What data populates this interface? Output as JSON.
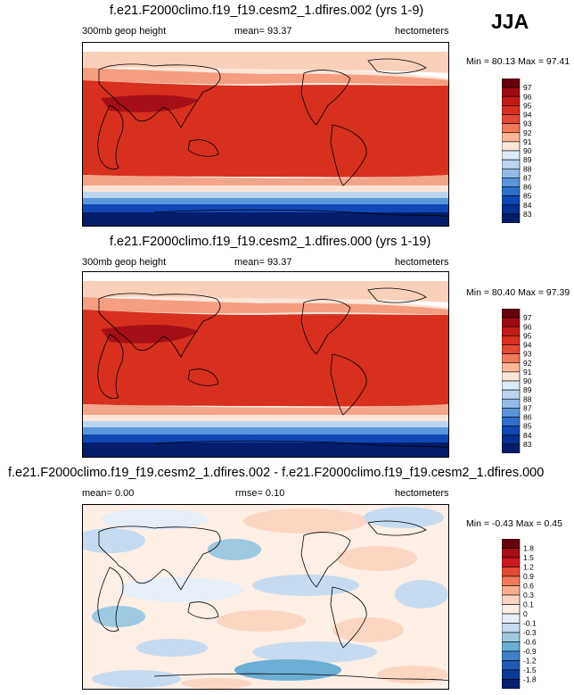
{
  "season": "JJA",
  "panels": [
    {
      "title": "f.e21.F2000climo.f19_f19.cesm2_1.dfires.002 (yrs 1-9)",
      "left_label": "300mb geop height",
      "center_label": "mean=  93.37",
      "right_label": "hectometers",
      "minmax": "Min = 80.13 Max =  97.41"
    },
    {
      "title": "f.e21.F2000climo.f19_f19.cesm2_1.dfires.000 (yrs 1-19)",
      "left_label": "300mb geop height",
      "center_label": "mean=  93.37",
      "right_label": "hectometers",
      "minmax": "Min = 80.40 Max =  97.39"
    },
    {
      "title": "f.e21.F2000climo.f19_f19.cesm2_1.dfires.002 - f.e21.F2000climo.f19_f19.cesm2_1.dfires.000",
      "left_label": "mean=   0.00",
      "center_label": "rmse=   0.10",
      "right_label": "hectometers",
      "minmax": "Min = -0.43 Max =   0.45"
    }
  ],
  "chart_data": [
    {
      "type": "heatmap",
      "title": "f.e21.F2000climo.f19_f19.cesm2_1.dfires.002 (yrs 1-9)",
      "variable": "300mb geop height",
      "units": "hectometers",
      "mean": 93.37,
      "min": 80.13,
      "max": 97.41,
      "colorbar": {
        "levels": [
          "97",
          "96",
          "95",
          "94",
          "93",
          "92",
          "91",
          "90",
          "89",
          "88",
          "87",
          "86",
          "85",
          "84",
          "83"
        ],
        "colors": [
          "#67000d",
          "#9e0b12",
          "#c11b17",
          "#d7301f",
          "#e34a33",
          "#f07a5a",
          "#fbb797",
          "#fde5d8",
          "#dce9f6",
          "#bad5ef",
          "#91bbe6",
          "#5b95d9",
          "#2f6ecb",
          "#1047b3",
          "#072f8f",
          "#031d6b"
        ]
      }
    },
    {
      "type": "heatmap",
      "title": "f.e21.F2000climo.f19_f19.cesm2_1.dfires.000 (yrs 1-19)",
      "variable": "300mb geop height",
      "units": "hectometers",
      "mean": 93.37,
      "min": 80.4,
      "max": 97.39,
      "colorbar": {
        "levels": [
          "97",
          "96",
          "95",
          "94",
          "93",
          "92",
          "91",
          "90",
          "89",
          "88",
          "87",
          "86",
          "85",
          "84",
          "83"
        ],
        "colors": [
          "#67000d",
          "#9e0b12",
          "#c11b17",
          "#d7301f",
          "#e34a33",
          "#f07a5a",
          "#fbb797",
          "#fde5d8",
          "#dce9f6",
          "#bad5ef",
          "#91bbe6",
          "#5b95d9",
          "#2f6ecb",
          "#1047b3",
          "#072f8f",
          "#031d6b"
        ]
      }
    },
    {
      "type": "heatmap",
      "title": "f.e21.F2000climo.f19_f19.cesm2_1.dfires.002 - f.e21.F2000climo.f19_f19.cesm2_1.dfires.000",
      "units": "hectometers",
      "mean": 0.0,
      "rmse": 0.1,
      "min": -0.43,
      "max": 0.45,
      "colorbar": {
        "levels": [
          "1.8",
          "1.5",
          "1.2",
          "0.9",
          "0.6",
          "0.3",
          "0.1",
          "0",
          "-0.1",
          "-0.3",
          "-0.6",
          "-0.9",
          "-1.2",
          "-1.5",
          "-1.8"
        ],
        "colors": [
          "#67000d",
          "#a50f15",
          "#cb181d",
          "#e34a33",
          "#f07a5a",
          "#f9ad8f",
          "#fcd5c3",
          "#fdeee6",
          "#e6eef8",
          "#c6dbef",
          "#9ecae1",
          "#6baed6",
          "#4080c8",
          "#2158b4",
          "#0c3a99",
          "#04206e"
        ]
      }
    }
  ]
}
